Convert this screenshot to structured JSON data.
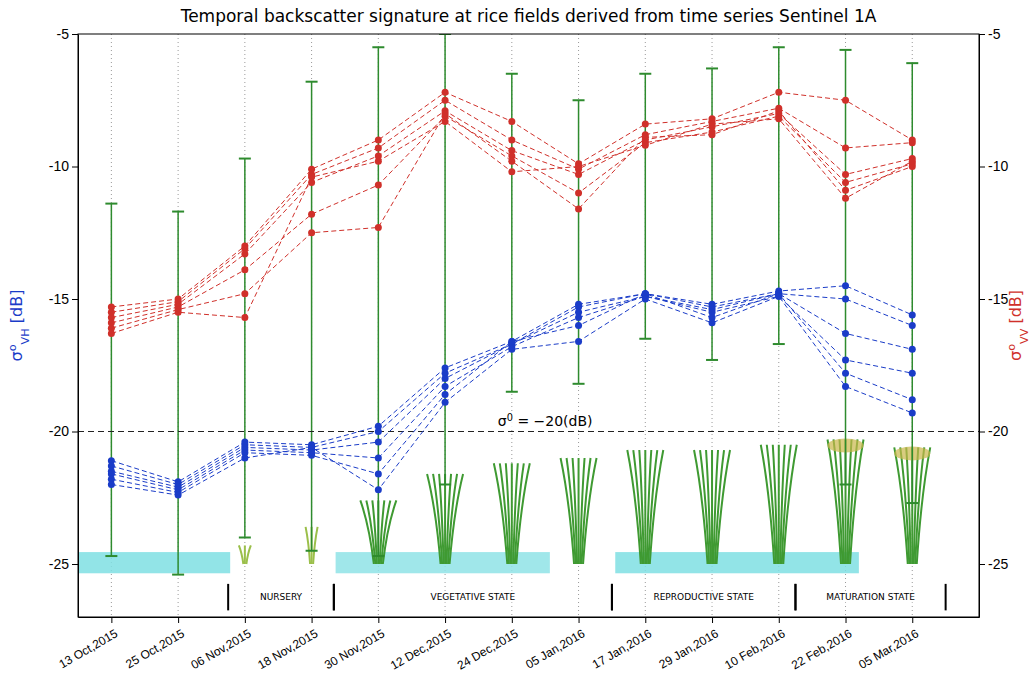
{
  "chart_data": {
    "type": "line",
    "title": "Temporal backscatter signature at rice fields derived from time series Sentinel 1A",
    "ylabel": {
      "base": "σ",
      "sup": "o",
      "sub": "VH",
      "unit": " [dB]"
    },
    "y2label": {
      "base": "σ",
      "sup": "o",
      "sub": "VV",
      "unit": " [dB]"
    },
    "x": [
      "2015-10-13",
      "2015-10-25",
      "2015-11-06",
      "2015-11-18",
      "2015-11-30",
      "2015-12-12",
      "2015-12-24",
      "2016-01-05",
      "2016-01-17",
      "2016-01-29",
      "2016-02-10",
      "2016-02-22",
      "2016-03-05"
    ],
    "xlim": [
      "2015-10-07",
      "2016-03-17"
    ],
    "xticks": [
      {
        "value": "2015-10-13",
        "label": "13 Oct,2015"
      },
      {
        "value": "2015-10-25",
        "label": "25 Oct,2015"
      },
      {
        "value": "2015-11-06",
        "label": "06 Nov,2015"
      },
      {
        "value": "2015-11-18",
        "label": "18 Nov,2015"
      },
      {
        "value": "2015-11-30",
        "label": "30 Nov,2015"
      },
      {
        "value": "2015-12-12",
        "label": "12 Dec,2015"
      },
      {
        "value": "2015-12-24",
        "label": "24 Dec,2015"
      },
      {
        "value": "2016-01-05",
        "label": "05 Jan,2016"
      },
      {
        "value": "2016-01-17",
        "label": "17 Jan,2016"
      },
      {
        "value": "2016-01-29",
        "label": "29 Jan,2016"
      },
      {
        "value": "2016-02-10",
        "label": "10 Feb,2016"
      },
      {
        "value": "2016-02-22",
        "label": "22 Feb,2016"
      },
      {
        "value": "2016-03-05",
        "label": "05 Mar,2016"
      }
    ],
    "ylim": [
      -27,
      -5
    ],
    "yticks": [
      -25,
      -20,
      -15,
      -10,
      -5
    ],
    "y2lim": [
      -27,
      -5
    ],
    "y2ticks": [
      -25,
      -20,
      -15,
      -10,
      -5
    ],
    "grid": "x",
    "series": [
      {
        "color": "#1a3cc8",
        "marker": "circle",
        "line_style": "dashed",
        "values": [
          -21.1,
          -21.9,
          -20.4,
          -20.5,
          -19.8,
          -17.6,
          -16.6,
          -15.2,
          -14.8,
          -15.2,
          -14.7,
          -14.5,
          -15.6
        ]
      },
      {
        "color": "#1a3cc8",
        "marker": "circle",
        "line_style": "dashed",
        "values": [
          -21.3,
          -22.0,
          -20.5,
          -20.6,
          -20.0,
          -17.8,
          -16.7,
          -15.3,
          -14.8,
          -15.3,
          -14.8,
          -15.0,
          -16.0
        ]
      },
      {
        "color": "#1a3cc8",
        "marker": "circle",
        "line_style": "dashed",
        "values": [
          -21.5,
          -22.1,
          -20.6,
          -20.7,
          -20.4,
          -18.0,
          -16.7,
          -15.5,
          -14.9,
          -15.4,
          -14.8,
          -16.3,
          -16.9
        ]
      },
      {
        "color": "#1a3cc8",
        "marker": "circle",
        "line_style": "dashed",
        "values": [
          -21.6,
          -22.2,
          -20.7,
          -20.8,
          -21.0,
          -18.3,
          -16.8,
          -15.7,
          -14.9,
          -15.5,
          -14.9,
          -17.3,
          -17.8
        ]
      },
      {
        "color": "#1a3cc8",
        "marker": "circle",
        "line_style": "dashed",
        "values": [
          -21.8,
          -22.3,
          -20.8,
          -20.9,
          -21.6,
          -18.6,
          -16.6,
          -16.0,
          -14.8,
          -15.7,
          -14.8,
          -17.8,
          -18.8
        ]
      },
      {
        "color": "#1a3cc8",
        "marker": "circle",
        "line_style": "dashed",
        "values": [
          -22.0,
          -22.4,
          -21.0,
          -20.6,
          -22.2,
          -18.9,
          -16.9,
          -16.6,
          -15.0,
          -15.9,
          -14.9,
          -18.3,
          -19.3
        ]
      },
      {
        "color": "#d0302a",
        "marker": "circle",
        "line_style": "dashed",
        "axis": "y2",
        "values": [
          -15.3,
          -15.0,
          -13.0,
          -10.1,
          -9.0,
          -7.2,
          -8.3,
          -9.9,
          -8.4,
          -8.2,
          -7.2,
          -7.5,
          -9.0
        ]
      },
      {
        "color": "#d0302a",
        "marker": "circle",
        "line_style": "dashed",
        "axis": "y2",
        "values": [
          -15.5,
          -15.1,
          -13.1,
          -10.3,
          -9.3,
          -7.5,
          -9.0,
          -10.1,
          -8.8,
          -8.3,
          -7.8,
          -9.3,
          -9.1
        ]
      },
      {
        "color": "#d0302a",
        "marker": "circle",
        "line_style": "dashed",
        "axis": "y2",
        "values": [
          -15.7,
          -15.2,
          -13.3,
          -10.6,
          -9.6,
          -7.9,
          -9.4,
          -10.3,
          -9.0,
          -8.5,
          -8.0,
          -10.3,
          -9.7
        ]
      },
      {
        "color": "#d0302a",
        "marker": "circle",
        "line_style": "dashed",
        "axis": "y2",
        "values": [
          -15.9,
          -15.3,
          -13.9,
          -11.8,
          -10.7,
          -8.1,
          -9.6,
          -11.0,
          -9.1,
          -8.7,
          -8.1,
          -10.6,
          -9.9
        ]
      },
      {
        "color": "#d0302a",
        "marker": "circle",
        "line_style": "dashed",
        "axis": "y2",
        "values": [
          -16.1,
          -15.4,
          -14.8,
          -12.5,
          -12.3,
          -8.0,
          -9.8,
          -11.6,
          -8.9,
          -8.8,
          -7.9,
          -10.9,
          -10.0
        ]
      },
      {
        "color": "#d0302a",
        "marker": "circle",
        "line_style": "dashed",
        "axis": "y2",
        "values": [
          -16.3,
          -15.5,
          -15.7,
          -10.4,
          -9.8,
          -8.3,
          -10.2,
          -10.0,
          -9.2,
          -8.4,
          -8.2,
          -11.2,
          -9.8
        ]
      }
    ],
    "whiskers": {
      "color": "#2e8b2e",
      "low": [
        -24.7,
        -25.4,
        -24.0,
        -24.5,
        -24.7,
        -22.0,
        -18.5,
        -18.2,
        -16.5,
        -17.3,
        -16.7,
        -22.0,
        -22.7
      ],
      "high": [
        -11.4,
        -11.7,
        -9.7,
        -6.8,
        -5.5,
        -5.0,
        -6.5,
        -7.5,
        -6.5,
        -6.3,
        -5.5,
        -5.6,
        -6.1
      ]
    },
    "threshold": {
      "value": -20,
      "label": {
        "base": "σ",
        "sup": "0",
        "rest": " = −20(dB)"
      }
    },
    "stages": [
      {
        "label": "NURSERY",
        "start": "2015-11-03",
        "end": "2015-11-22"
      },
      {
        "label": "VEGETATIVE STATE",
        "start": "2015-11-22",
        "end": "2016-01-11"
      },
      {
        "label": "REPRODUCTIVE STATE",
        "start": "2016-01-11",
        "end": "2016-02-13"
      },
      {
        "label": "MATURATION STATE",
        "start": "2016-02-13",
        "end": "2016-03-11"
      }
    ]
  }
}
